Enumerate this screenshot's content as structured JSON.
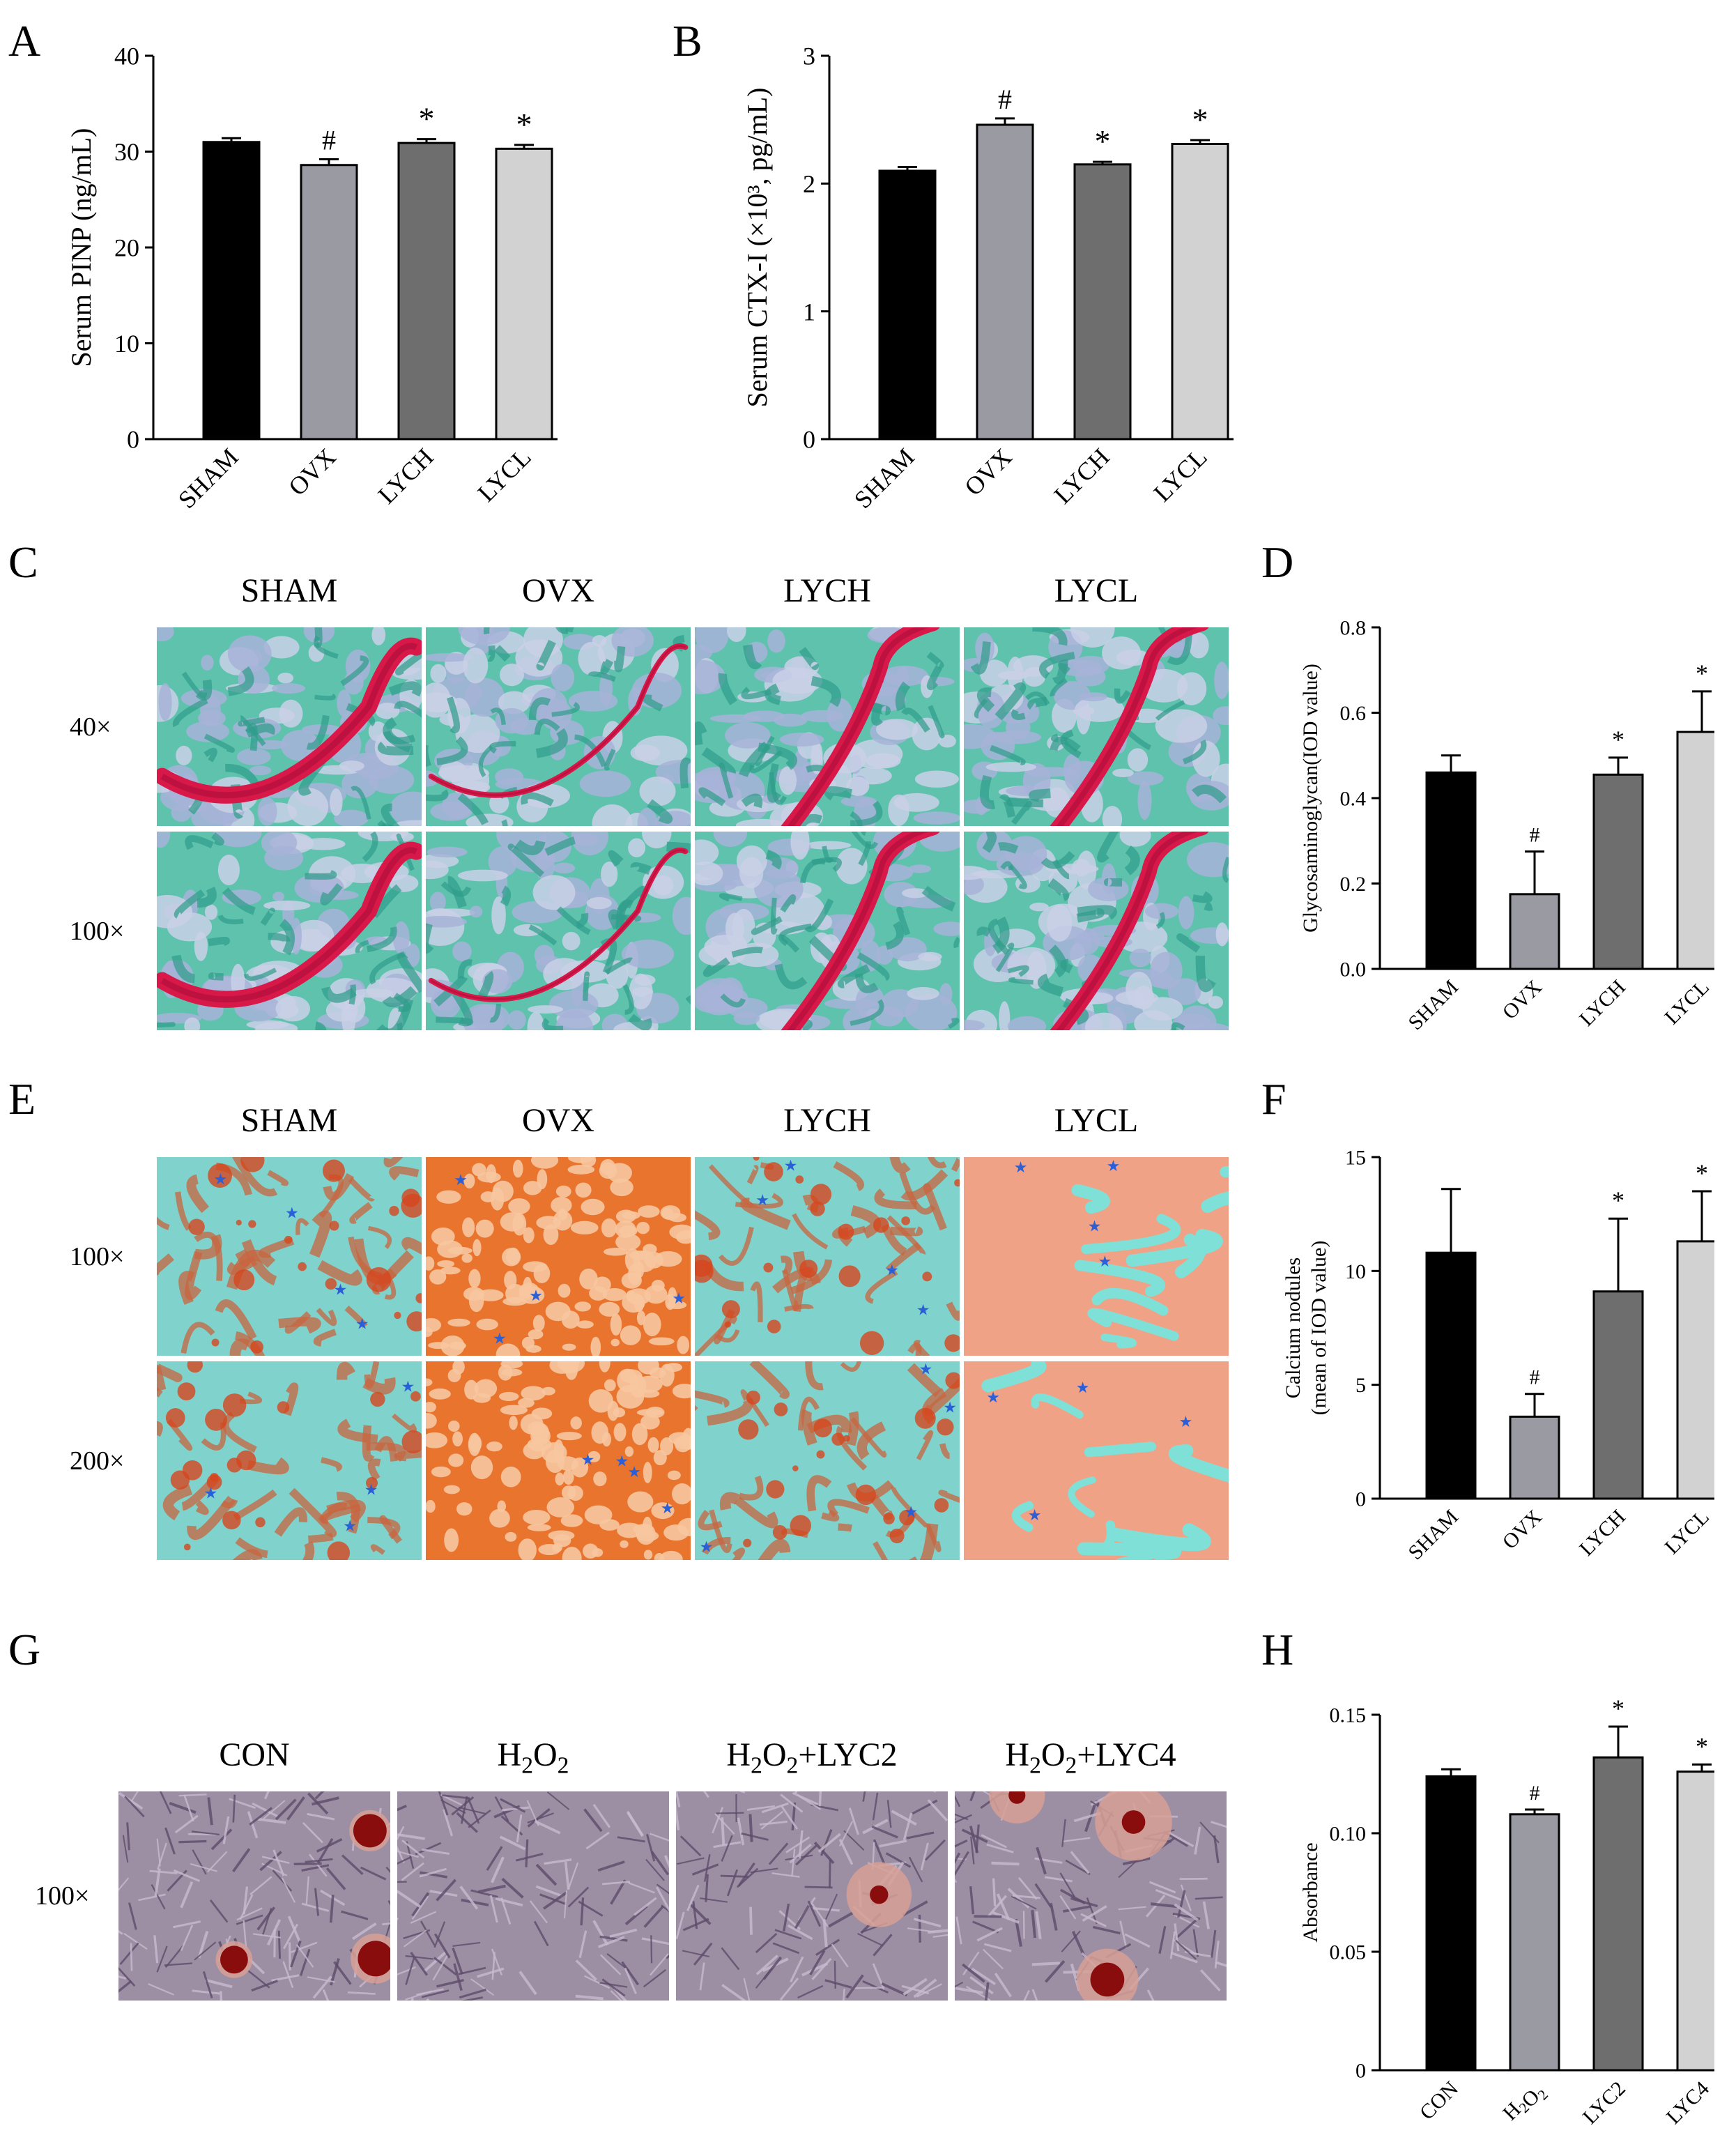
{
  "panels": {
    "A": "A",
    "B": "B",
    "C": "C",
    "D": "D",
    "E": "E",
    "F": "F",
    "G": "G",
    "H": "H"
  },
  "colors": {
    "SHAM": "#000000",
    "OVX": "#9a9aa2",
    "LYCH": "#6e6e6e",
    "LYCL": "#d2d2d2"
  },
  "micrographs": {
    "C": {
      "columns": [
        "SHAM",
        "OVX",
        "LYCH",
        "LYCL"
      ],
      "rows": [
        "40×",
        "100×"
      ],
      "stain": "safranin-o-fast-green"
    },
    "E": {
      "columns": [
        "SHAM",
        "OVX",
        "LYCH",
        "LYCL"
      ],
      "rows": [
        "100×",
        "200×"
      ],
      "stain": "alizarin-red"
    },
    "G": {
      "columns": [
        "CON",
        "H2O2",
        "H2O2+LYC2",
        "H2O2+LYC4"
      ],
      "rows": [
        "100×"
      ],
      "stain": "alizarin-red-cells"
    }
  },
  "chart_data": [
    {
      "id": "A",
      "type": "bar",
      "categories": [
        "SHAM",
        "OVX",
        "LYCH",
        "LYCL"
      ],
      "values": [
        31.0,
        28.6,
        30.9,
        30.3
      ],
      "errors": [
        0.4,
        0.6,
        0.4,
        0.4
      ],
      "markers": [
        "",
        "#",
        "*",
        "*"
      ],
      "ylabel": "Serum PINP (ng/mL)",
      "ylim": [
        0,
        40
      ],
      "yticks": [
        "0",
        "10",
        "20",
        "30",
        "40"
      ]
    },
    {
      "id": "B",
      "type": "bar",
      "categories": [
        "SHAM",
        "OVX",
        "LYCH",
        "LYCL"
      ],
      "values": [
        2.1,
        2.46,
        2.15,
        2.31
      ],
      "errors": [
        0.03,
        0.05,
        0.02,
        0.03
      ],
      "markers": [
        "",
        "#",
        "*",
        "*"
      ],
      "ylabel": "Serum CTX-I (×10³, pg/mL)",
      "ylim": [
        0,
        3
      ],
      "yticks": [
        "0",
        "1",
        "2",
        "3"
      ]
    },
    {
      "id": "D",
      "type": "bar",
      "categories": [
        "SHAM",
        "OVX",
        "LYCH",
        "LYCL"
      ],
      "values": [
        0.46,
        0.175,
        0.455,
        0.555
      ],
      "errors": [
        0.04,
        0.1,
        0.04,
        0.095
      ],
      "markers": [
        "",
        "#",
        "*",
        "*"
      ],
      "ylabel": "Glycosaminoglycan(IOD value)",
      "ylim": [
        0,
        0.8
      ],
      "yticks": [
        "0.0",
        "0.2",
        "0.4",
        "0.6",
        "0.8"
      ]
    },
    {
      "id": "F",
      "type": "bar",
      "categories": [
        "SHAM",
        "OVX",
        "LYCH",
        "LYCL"
      ],
      "values": [
        10.8,
        3.6,
        9.1,
        11.3
      ],
      "errors": [
        2.8,
        1.0,
        3.2,
        2.2
      ],
      "markers": [
        "",
        "#",
        "*",
        "*"
      ],
      "ylabel": "Calcium nodules",
      "ylabel2": "(mean of IOD value)",
      "ylim": [
        0,
        15
      ],
      "yticks": [
        "0",
        "5",
        "10",
        "15"
      ]
    },
    {
      "id": "H",
      "type": "bar",
      "categories": [
        "CON",
        "H2O2",
        "LYC2",
        "LYC4"
      ],
      "values": [
        0.124,
        0.108,
        0.132,
        0.126
      ],
      "errors": [
        0.003,
        0.002,
        0.013,
        0.003
      ],
      "markers": [
        "",
        "#",
        "*",
        "*"
      ],
      "ylabel": "Absorbance",
      "ylim": [
        0,
        0.15
      ],
      "yticks": [
        "0",
        "0.05",
        "0.10",
        "0.15"
      ]
    }
  ]
}
